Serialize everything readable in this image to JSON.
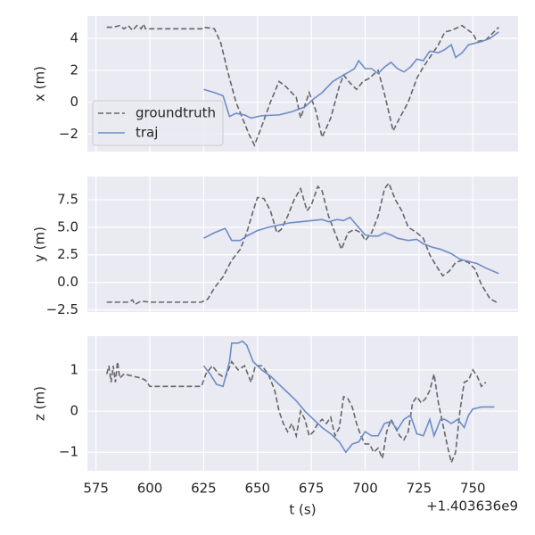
{
  "chart_data": [
    {
      "type": "line",
      "ylabel": "x (m)",
      "ylim": [
        -3.1,
        5.4
      ],
      "yticks": [
        4,
        2,
        0,
        {
          "value": -2,
          "label": "−2"
        }
      ],
      "xlim": [
        571,
        771
      ],
      "xticks": [
        575,
        600,
        625,
        650,
        675,
        700,
        725,
        750
      ],
      "grid": true,
      "legend": "lower left",
      "series": [
        {
          "name": "groundtruth",
          "color": "#666666",
          "linestyle": "dashed",
          "x": [
            580,
            583,
            586,
            588,
            590,
            592,
            594,
            596,
            597,
            598,
            600,
            610,
            624,
            625,
            630,
            633,
            636,
            640,
            643,
            646,
            648.6,
            652,
            656,
            660,
            663,
            668,
            670,
            674,
            677,
            680,
            684,
            688,
            690,
            693,
            696,
            699,
            702,
            706,
            709,
            713,
            716,
            720,
            724,
            727,
            731,
            734,
            737,
            740,
            745,
            748,
            750,
            752,
            756,
            759,
            762
          ],
          "values": [
            4.7,
            4.7,
            4.8,
            4.6,
            4.8,
            4.5,
            4.8,
            4.6,
            4.9,
            4.6,
            4.6,
            4.6,
            4.6,
            4.7,
            4.6,
            3.7,
            2.0,
            0.0,
            -1.0,
            -2.0,
            -2.7,
            -1.5,
            0.0,
            1.3,
            1.0,
            0.3,
            -1.0,
            0.6,
            -0.5,
            -2.2,
            -1.0,
            1.0,
            1.7,
            1.2,
            0.8,
            1.3,
            1.5,
            2.0,
            0.5,
            -1.8,
            -1.0,
            0.0,
            1.5,
            2.2,
            3.0,
            3.6,
            4.4,
            4.5,
            4.8,
            4.5,
            4.3,
            3.8,
            3.9,
            4.3,
            4.7
          ]
        },
        {
          "name": "traj",
          "color": "#6c8cc8",
          "linestyle": "solid",
          "x": [
            625,
            630,
            634,
            637,
            640,
            644,
            647,
            652,
            660,
            666,
            672,
            676,
            680,
            685,
            690,
            695,
            697,
            700,
            703,
            706,
            709,
            712,
            715,
            718,
            721,
            724,
            727,
            730,
            734,
            737,
            740,
            742,
            745,
            748,
            754,
            758,
            762
          ],
          "values": [
            0.8,
            0.6,
            0.4,
            -0.9,
            -0.7,
            -0.8,
            -1.0,
            -0.85,
            -0.8,
            -0.6,
            -0.3,
            0.2,
            0.6,
            1.3,
            1.7,
            2.1,
            2.6,
            2.1,
            2.1,
            1.8,
            2.2,
            2.5,
            2.1,
            1.9,
            2.2,
            2.7,
            2.6,
            3.2,
            3.1,
            3.3,
            3.6,
            2.8,
            3.1,
            3.6,
            3.8,
            4.0,
            4.4
          ]
        }
      ]
    },
    {
      "type": "line",
      "ylabel": "y (m)",
      "ylim": [
        -2.7,
        9.6
      ],
      "yticks": [
        7.5,
        {
          "value": 5,
          "label": "5.0"
        },
        2.5,
        {
          "value": 0,
          "label": "0.0"
        },
        {
          "value": -2.5,
          "label": "−2.5"
        }
      ],
      "xlim": [
        571,
        771
      ],
      "xticks": [
        575,
        600,
        625,
        650,
        675,
        700,
        725,
        750
      ],
      "grid": true,
      "series": [
        {
          "name": "groundtruth",
          "color": "#666666",
          "linestyle": "dashed",
          "x": [
            580,
            585,
            590,
            592,
            593,
            596,
            600,
            610,
            624,
            625,
            627,
            630,
            634,
            638,
            642,
            645,
            648,
            650,
            653,
            656,
            659,
            661,
            664,
            667,
            670,
            673,
            675,
            678,
            680,
            683,
            686,
            689,
            692,
            695,
            698,
            700,
            703,
            706,
            709,
            711,
            714,
            717,
            720,
            724,
            727,
            730,
            733,
            736,
            739,
            742,
            745,
            748,
            751,
            754,
            758,
            762
          ],
          "values": [
            -1.8,
            -1.8,
            -1.8,
            -1.6,
            -2.0,
            -1.7,
            -1.8,
            -1.8,
            -1.8,
            -1.7,
            -1.5,
            -0.5,
            0.5,
            2.0,
            3.0,
            4.5,
            6.5,
            7.7,
            7.6,
            6.5,
            4.5,
            4.8,
            6.0,
            7.5,
            8.5,
            6.5,
            7.0,
            8.7,
            8.3,
            6.0,
            4.5,
            3.0,
            4.5,
            4.8,
            4.5,
            3.8,
            4.5,
            6.0,
            8.5,
            9.0,
            7.5,
            6.5,
            5.0,
            4.5,
            4.0,
            2.5,
            1.5,
            0.6,
            1.0,
            1.8,
            2.0,
            1.8,
            1.2,
            -0.2,
            -1.5,
            -1.9
          ]
        },
        {
          "name": "traj",
          "color": "#6c8cc8",
          "linestyle": "solid",
          "x": [
            625,
            630,
            635,
            638,
            642,
            645,
            650,
            655,
            660,
            665,
            670,
            675,
            680,
            683,
            687,
            690,
            693,
            696,
            700,
            703,
            706,
            709,
            712,
            715,
            720,
            724,
            727,
            731,
            735,
            740,
            744,
            748,
            752,
            756,
            762
          ],
          "values": [
            4.0,
            4.5,
            4.9,
            3.8,
            3.8,
            4.2,
            4.7,
            5.0,
            5.2,
            5.4,
            5.5,
            5.6,
            5.7,
            5.5,
            5.7,
            5.6,
            5.9,
            5.2,
            4.3,
            4.2,
            4.2,
            4.5,
            4.3,
            4.0,
            3.8,
            3.9,
            3.5,
            3.2,
            3.0,
            2.6,
            2.1,
            1.9,
            1.7,
            1.3,
            0.8
          ]
        }
      ]
    },
    {
      "type": "line",
      "ylabel": "z (m)",
      "xlabel": "t (s)",
      "offset_text": "+1.403636e9",
      "ylim": [
        -1.45,
        1.82
      ],
      "yticks": [
        1,
        0,
        {
          "value": -1,
          "label": "−1"
        }
      ],
      "xlim": [
        571,
        771
      ],
      "xticks": [
        575,
        600,
        625,
        650,
        675,
        700,
        725,
        750
      ],
      "grid": true,
      "series": [
        {
          "name": "groundtruth",
          "color": "#666666",
          "linestyle": "dashed",
          "x": [
            580,
            581,
            582,
            583,
            584,
            585,
            586,
            588,
            592,
            596,
            598,
            600,
            610,
            624,
            626,
            629,
            632,
            635,
            638,
            641,
            644,
            647,
            649,
            652,
            655,
            658,
            660,
            662,
            664,
            666,
            668,
            670,
            672,
            674,
            676,
            678,
            680,
            682,
            684,
            686,
            688,
            690,
            692,
            694,
            696,
            698,
            700,
            702,
            704,
            706,
            708,
            710,
            712,
            714,
            716,
            718,
            720,
            722,
            724,
            726,
            728,
            730,
            732,
            734,
            736,
            738,
            740,
            742,
            744,
            746,
            748,
            750,
            752,
            754,
            756
          ],
          "values": [
            0.9,
            1.1,
            0.7,
            1.1,
            0.7,
            1.2,
            0.8,
            0.9,
            0.85,
            0.8,
            0.75,
            0.6,
            0.6,
            0.6,
            0.9,
            1.1,
            0.9,
            0.8,
            1.2,
            1.0,
            1.1,
            0.7,
            1.1,
            1.1,
            0.9,
            0.5,
            0.0,
            -0.3,
            -0.5,
            -0.3,
            -0.6,
            0.0,
            -0.2,
            -0.6,
            -0.5,
            -0.3,
            -0.2,
            -0.3,
            -0.15,
            -0.6,
            -0.4,
            0.35,
            0.3,
            0.1,
            -0.3,
            -0.6,
            -0.8,
            -0.8,
            -1.0,
            -0.9,
            -1.15,
            -0.5,
            -0.2,
            -0.4,
            -0.6,
            -0.7,
            -0.5,
            0.2,
            0.35,
            0.2,
            0.3,
            0.5,
            0.9,
            0.2,
            -0.3,
            -0.8,
            -1.25,
            -1.0,
            0.0,
            0.7,
            0.75,
            1.0,
            0.85,
            0.6,
            0.7
          ]
        },
        {
          "name": "traj",
          "color": "#6c8cc8",
          "linestyle": "solid",
          "x": [
            625,
            628,
            631,
            634,
            637,
            638,
            641,
            643,
            645,
            648,
            652,
            656,
            660,
            664,
            668,
            672,
            676,
            680,
            684,
            688,
            691,
            694,
            697,
            700,
            703,
            706,
            709,
            712,
            715,
            718,
            721,
            724,
            727,
            730,
            732,
            735,
            737,
            740,
            743,
            746,
            748,
            750,
            754,
            760
          ],
          "values": [
            1.1,
            0.9,
            0.65,
            0.6,
            1.2,
            1.65,
            1.65,
            1.7,
            1.6,
            1.2,
            1.0,
            0.85,
            0.65,
            0.45,
            0.25,
            0.0,
            -0.2,
            -0.4,
            -0.55,
            -0.75,
            -1.0,
            -0.8,
            -0.75,
            -0.5,
            -0.6,
            -0.6,
            -0.3,
            -0.25,
            -0.45,
            -0.2,
            -0.1,
            -0.55,
            -0.6,
            -0.2,
            -0.6,
            -0.2,
            -0.2,
            -0.3,
            -0.2,
            -0.4,
            -0.1,
            0.05,
            0.1,
            0.1
          ]
        }
      ]
    }
  ]
}
